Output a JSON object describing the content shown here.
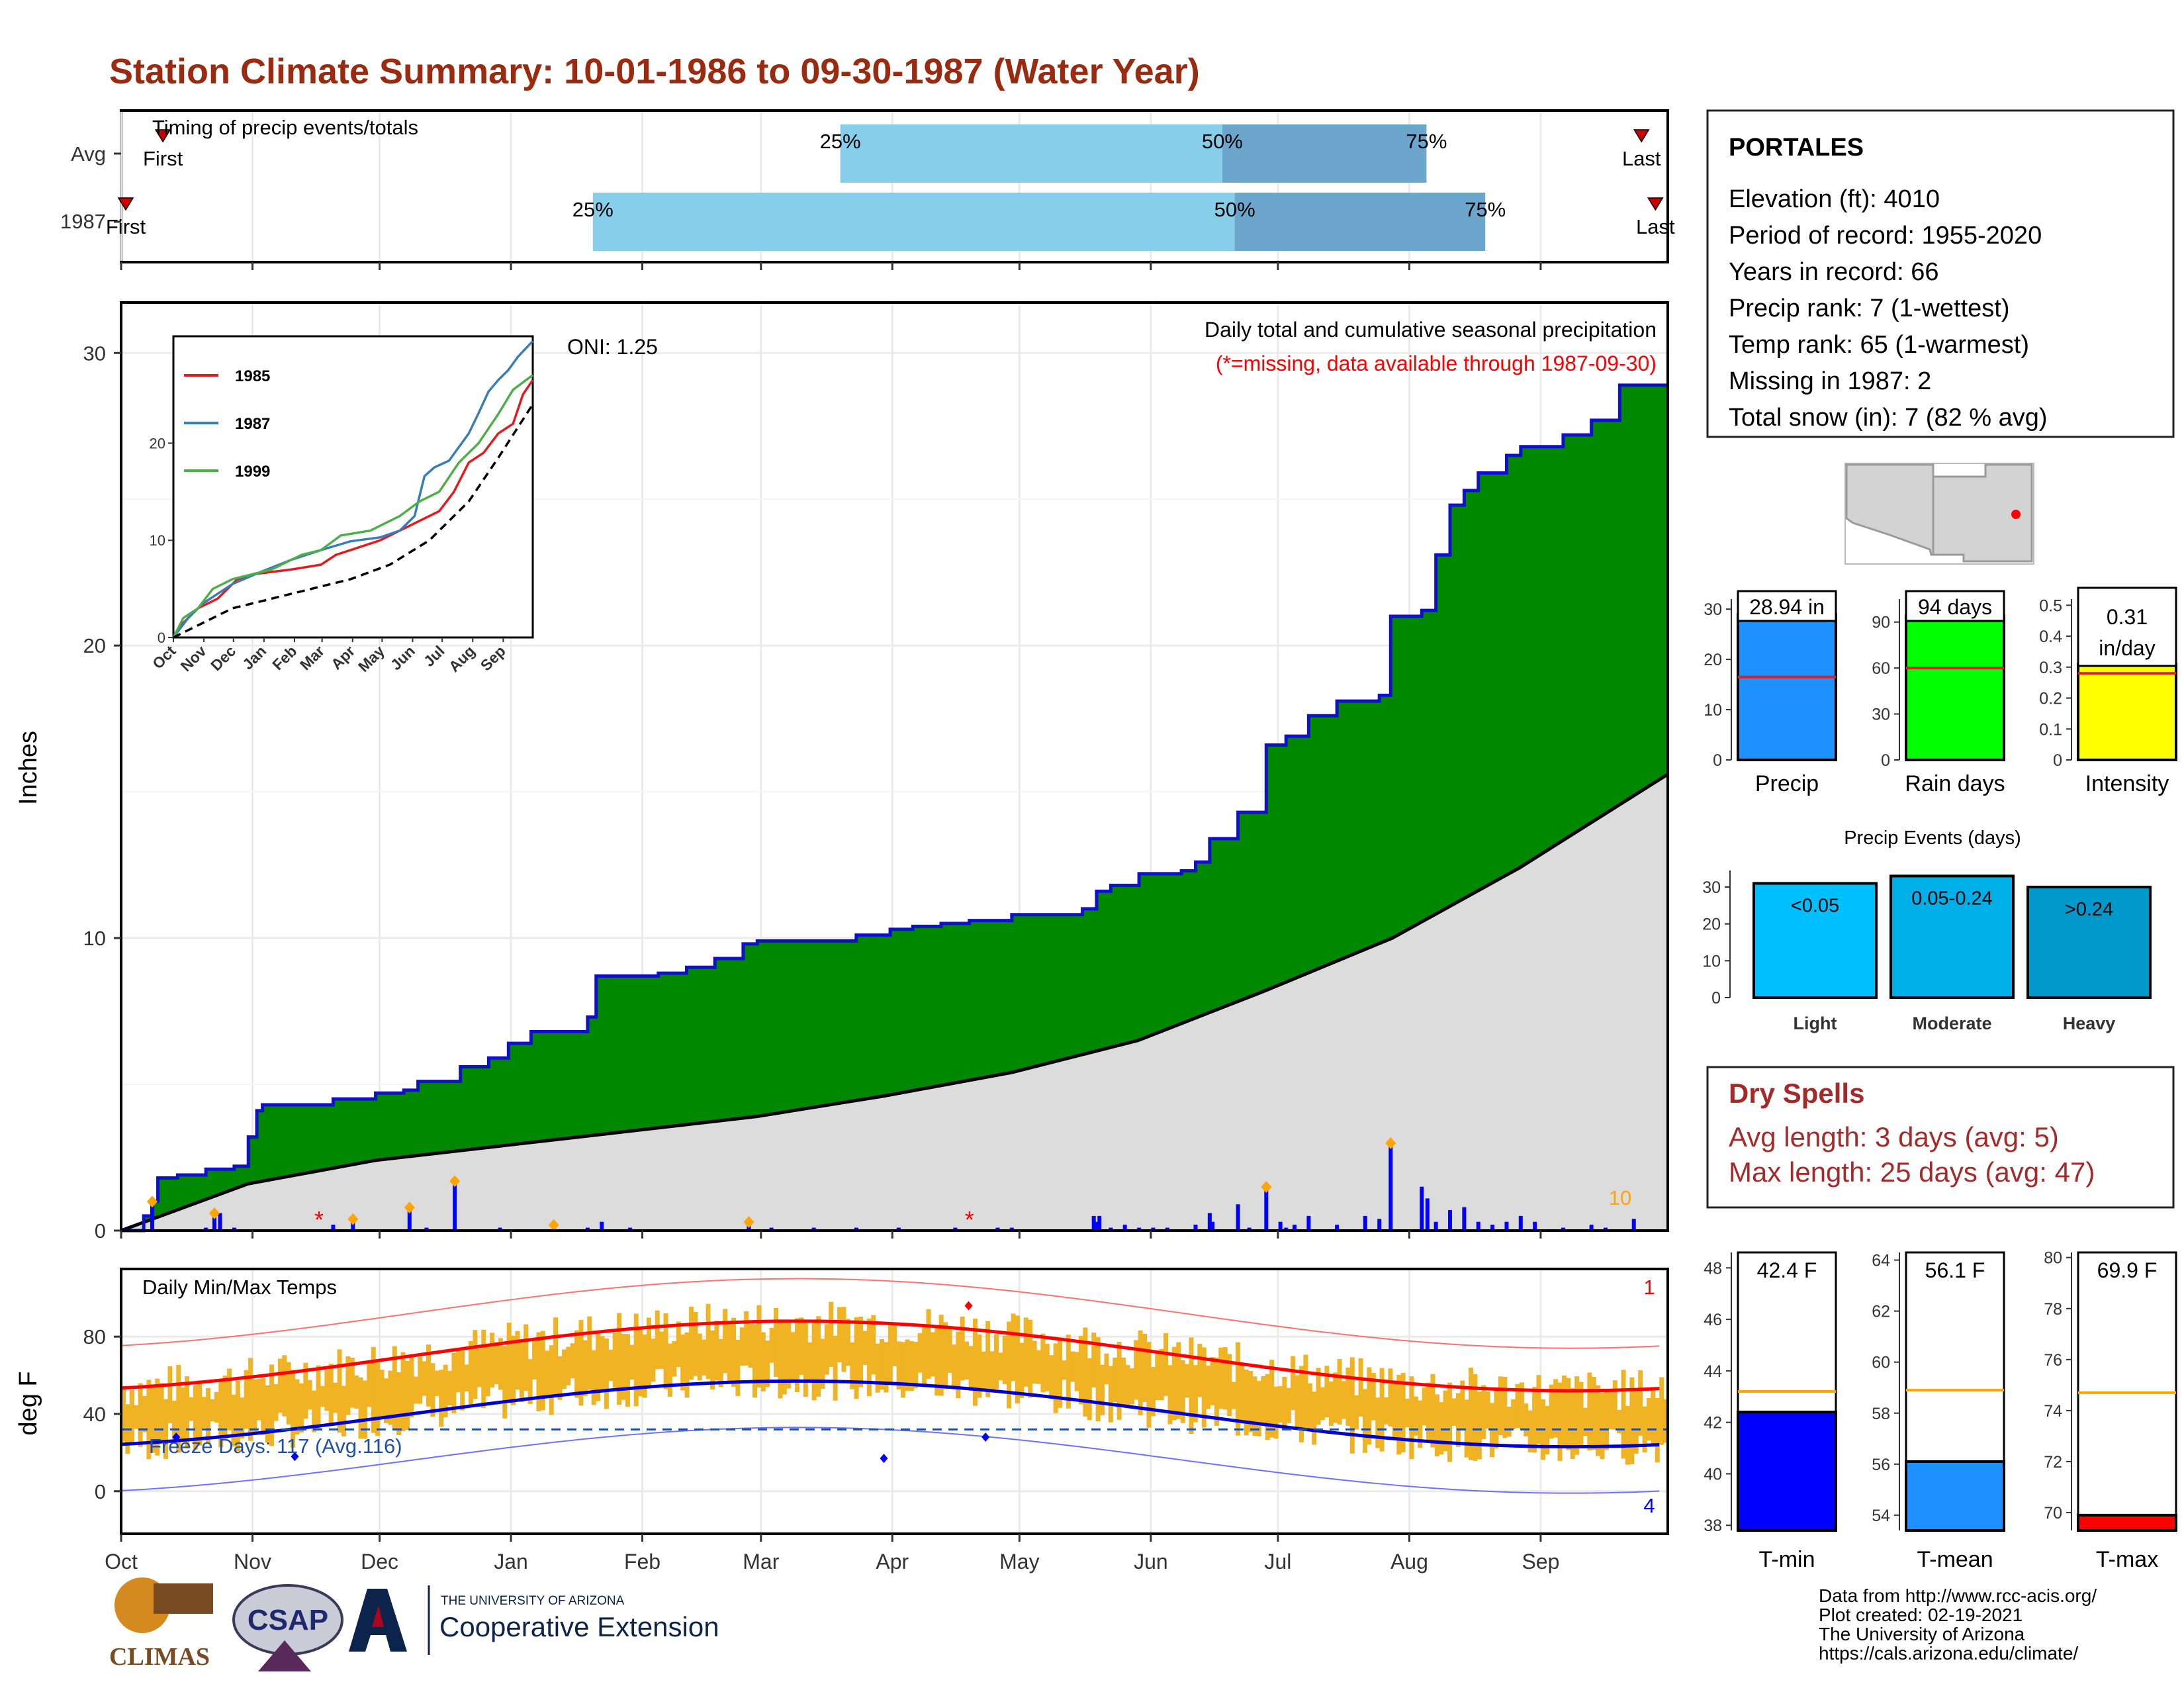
{
  "title": "Station Climate Summary: 10-01-1986 to 09-30-1987 (Water Year)",
  "months": [
    "Oct",
    "Nov",
    "Dec",
    "Jan",
    "Feb",
    "Mar",
    "Apr",
    "May",
    "Jun",
    "Jul",
    "Aug",
    "Sep"
  ],
  "station": {
    "name": "PORTALES",
    "lines": [
      "Elevation (ft): 4010",
      "Period of record: 1955-2020",
      "Years in record: 66",
      "Precip rank: 7 (1-wettest)",
      "Temp rank: 65 (1-warmest)",
      "Missing in 1987: 2",
      "Total snow (in): 7 (82 % avg)"
    ]
  },
  "timing": {
    "label": "Timing of precip events/totals",
    "rows": [
      "Avg",
      "1987"
    ],
    "first_label": "First",
    "last_label": "Last",
    "pct_labels": [
      "25%",
      "50%",
      "75%"
    ],
    "avg": {
      "first": 0.027,
      "p25": 0.465,
      "p50": 0.712,
      "p75": 0.844,
      "last": 0.983
    },
    "y1987": {
      "first": 0.003,
      "p25": 0.305,
      "p50": 0.72,
      "p75": 0.882,
      "last": 0.992
    }
  },
  "precip_panel": {
    "ylabel": "Inches",
    "yticks": [
      0,
      10,
      20,
      30
    ],
    "ylim": [
      0,
      31.5
    ],
    "title": "Daily total and cumulative seasonal precipitation",
    "subtitle": "(*=missing, data available through 1987-09-30)",
    "oni": "ONI: 1.25",
    "max_daily_label": "10",
    "cumulative_1987": [
      [
        0,
        0
      ],
      [
        8,
        0.5
      ],
      [
        11,
        1.0
      ],
      [
        13,
        1.8
      ],
      [
        20,
        1.9
      ],
      [
        30,
        2.1
      ],
      [
        40,
        2.2
      ],
      [
        45,
        3.2
      ],
      [
        48,
        4.1
      ],
      [
        50,
        4.3
      ],
      [
        70,
        4.3
      ],
      [
        75,
        4.5
      ],
      [
        90,
        4.7
      ],
      [
        100,
        4.8
      ],
      [
        105,
        5.1
      ],
      [
        120,
        5.6
      ],
      [
        130,
        5.9
      ],
      [
        137,
        6.4
      ],
      [
        145,
        6.8
      ],
      [
        160,
        6.8
      ],
      [
        165,
        7.3
      ],
      [
        168,
        8.7
      ],
      [
        185,
        8.7
      ],
      [
        190,
        8.8
      ],
      [
        200,
        9.0
      ],
      [
        210,
        9.3
      ],
      [
        220,
        9.8
      ],
      [
        225,
        9.9
      ],
      [
        250,
        9.9
      ],
      [
        260,
        10.1
      ],
      [
        272,
        10.3
      ],
      [
        280,
        10.4
      ],
      [
        290,
        10.5
      ],
      [
        300,
        10.6
      ],
      [
        315,
        10.8
      ],
      [
        340,
        11.0
      ],
      [
        345,
        11.6
      ],
      [
        350,
        11.8
      ],
      [
        360,
        12.2
      ],
      [
        375,
        12.3
      ],
      [
        380,
        12.6
      ],
      [
        385,
        13.4
      ],
      [
        395,
        14.3
      ],
      [
        405,
        16.6
      ],
      [
        412,
        16.9
      ],
      [
        420,
        17.6
      ],
      [
        430,
        18.1
      ],
      [
        440,
        18.1
      ],
      [
        445,
        18.3
      ],
      [
        449,
        21.0
      ],
      [
        460,
        21.2
      ],
      [
        465,
        23.1
      ],
      [
        470,
        24.8
      ],
      [
        475,
        25.3
      ],
      [
        480,
        25.9
      ],
      [
        490,
        26.5
      ],
      [
        495,
        26.8
      ],
      [
        510,
        27.2
      ],
      [
        520,
        27.7
      ],
      [
        530,
        28.9
      ],
      [
        547,
        28.9
      ]
    ],
    "average_cumulative": [
      [
        0,
        0
      ],
      [
        30,
        1.6
      ],
      [
        60,
        2.4
      ],
      [
        90,
        2.9
      ],
      [
        120,
        3.4
      ],
      [
        150,
        3.9
      ],
      [
        180,
        4.6
      ],
      [
        210,
        5.4
      ],
      [
        240,
        6.5
      ],
      [
        270,
        8.2
      ],
      [
        300,
        10.0
      ],
      [
        330,
        12.4
      ],
      [
        365,
        15.6
      ]
    ],
    "daily_bars": [
      [
        11,
        0.9
      ],
      [
        30,
        0.1
      ],
      [
        33,
        0.5
      ],
      [
        35,
        0.6
      ],
      [
        40,
        0.1
      ],
      [
        75,
        0.2
      ],
      [
        82,
        0.3
      ],
      [
        102,
        0.7
      ],
      [
        108,
        0.1
      ],
      [
        118,
        1.6
      ],
      [
        134,
        0.1
      ],
      [
        153,
        0.1
      ],
      [
        165,
        0.1
      ],
      [
        170,
        0.3
      ],
      [
        180,
        0.1
      ],
      [
        222,
        0.2
      ],
      [
        230,
        0.1
      ],
      [
        245,
        0.1
      ],
      [
        260,
        0.1
      ],
      [
        275,
        0.1
      ],
      [
        295,
        0.1
      ],
      [
        310,
        0.1
      ],
      [
        315,
        0.1
      ],
      [
        344,
        0.5
      ],
      [
        345,
        0.3
      ],
      [
        346,
        0.5
      ],
      [
        350,
        0.1
      ],
      [
        355,
        0.2
      ],
      [
        360,
        0.1
      ],
      [
        365,
        0.1
      ],
      [
        370,
        0.1
      ],
      [
        380,
        0.2
      ],
      [
        385,
        0.6
      ],
      [
        386,
        0.3
      ],
      [
        395,
        0.9
      ],
      [
        399,
        0.1
      ],
      [
        405,
        1.4
      ],
      [
        410,
        0.3
      ],
      [
        412,
        0.1
      ],
      [
        415,
        0.2
      ],
      [
        420,
        0.5
      ],
      [
        430,
        0.2
      ],
      [
        440,
        0.5
      ],
      [
        445,
        0.4
      ],
      [
        449,
        2.9
      ],
      [
        460,
        1.5
      ],
      [
        462,
        1.1
      ],
      [
        465,
        0.3
      ],
      [
        470,
        0.7
      ],
      [
        475,
        0.8
      ],
      [
        480,
        0.3
      ],
      [
        485,
        0.2
      ],
      [
        490,
        0.3
      ],
      [
        495,
        0.5
      ],
      [
        500,
        0.3
      ],
      [
        510,
        0.1
      ],
      [
        520,
        0.2
      ],
      [
        525,
        0.1
      ],
      [
        535,
        0.4
      ]
    ],
    "missing_days": [
      70,
      300
    ],
    "record_days": [
      11,
      33,
      82,
      102,
      118,
      153,
      222,
      405,
      449
    ]
  },
  "inset": {
    "yticks": [
      0,
      10,
      20
    ],
    "ylim": [
      0,
      31
    ],
    "months": [
      "Oct",
      "Nov",
      "Dec",
      "Jan",
      "Feb",
      "Mar",
      "Apr",
      "May",
      "Jun",
      "Jul",
      "Aug",
      "Sep"
    ],
    "series": [
      {
        "name": "1985",
        "color": "#e41a1c",
        "values": [
          [
            0,
            0
          ],
          [
            10,
            1.5
          ],
          [
            25,
            3.0
          ],
          [
            45,
            4.0
          ],
          [
            55,
            5.0
          ],
          [
            65,
            6.0
          ],
          [
            80,
            6.5
          ],
          [
            120,
            7.0
          ],
          [
            150,
            7.5
          ],
          [
            165,
            8.5
          ],
          [
            180,
            9.0
          ],
          [
            210,
            10.0
          ],
          [
            240,
            11.5
          ],
          [
            270,
            13.0
          ],
          [
            285,
            15.0
          ],
          [
            300,
            18.0
          ],
          [
            315,
            19.0
          ],
          [
            330,
            21.0
          ],
          [
            345,
            22.0
          ],
          [
            355,
            25.0
          ],
          [
            365,
            26.5
          ]
        ]
      },
      {
        "name": "1987",
        "color": "#377eb8",
        "values": [
          [
            0,
            0
          ],
          [
            15,
            2.0
          ],
          [
            30,
            3.5
          ],
          [
            45,
            4.5
          ],
          [
            60,
            5.5
          ],
          [
            90,
            6.8
          ],
          [
            120,
            8.0
          ],
          [
            150,
            9.0
          ],
          [
            180,
            9.9
          ],
          [
            210,
            10.3
          ],
          [
            230,
            11.0
          ],
          [
            245,
            12.5
          ],
          [
            255,
            16.6
          ],
          [
            265,
            17.5
          ],
          [
            280,
            18.2
          ],
          [
            300,
            21.0
          ],
          [
            310,
            23.1
          ],
          [
            320,
            25.3
          ],
          [
            330,
            26.5
          ],
          [
            340,
            27.5
          ],
          [
            350,
            28.9
          ],
          [
            365,
            30.5
          ]
        ]
      },
      {
        "name": "1999",
        "color": "#4daf4a",
        "values": [
          [
            0,
            0
          ],
          [
            10,
            2.0
          ],
          [
            25,
            3.0
          ],
          [
            40,
            5.0
          ],
          [
            60,
            6.0
          ],
          [
            80,
            6.5
          ],
          [
            100,
            7.0
          ],
          [
            130,
            8.5
          ],
          [
            150,
            9.0
          ],
          [
            170,
            10.5
          ],
          [
            200,
            11.0
          ],
          [
            230,
            12.5
          ],
          [
            250,
            14.0
          ],
          [
            270,
            15.0
          ],
          [
            290,
            18.0
          ],
          [
            310,
            20.0
          ],
          [
            330,
            23.0
          ],
          [
            345,
            25.5
          ],
          [
            365,
            27.0
          ]
        ]
      }
    ],
    "avg_values": [
      [
        0,
        0
      ],
      [
        60,
        3.0
      ],
      [
        120,
        4.5
      ],
      [
        180,
        6.0
      ],
      [
        220,
        7.5
      ],
      [
        260,
        10.0
      ],
      [
        300,
        14.0
      ],
      [
        330,
        18.5
      ],
      [
        365,
        24.0
      ]
    ]
  },
  "temp_panel": {
    "ylabel": "deg F",
    "title": "Daily Min/Max Temps",
    "yticks": [
      0,
      40,
      80
    ],
    "ylim": [
      -22,
      115
    ],
    "freeze_label": "Freeze Days: 117 (Avg.116)",
    "freeze_line": 32,
    "record_high_count": "1",
    "record_low_count": "4"
  },
  "bar_stats": [
    {
      "label": "Precip",
      "value_label": "28.94 in",
      "value": 28.94,
      "avg": 16.5,
      "ymax": 32,
      "yticks": [
        0,
        10,
        20,
        30
      ],
      "color": "#1e90ff"
    },
    {
      "label": "Rain days",
      "value_label": "94 days",
      "value": 94,
      "avg": 60,
      "ymax": 105,
      "yticks": [
        0,
        30,
        60,
        90
      ],
      "color": "#00ff00"
    },
    {
      "label": "Intensity",
      "value_label": "0.31 in/day",
      "value": 0.31,
      "avg": 0.28,
      "ymax": 0.52,
      "yticks": [
        0.0,
        0.1,
        0.2,
        0.3,
        0.4,
        0.5
      ],
      "color": "#ffff00"
    }
  ],
  "precip_events": {
    "title": "Precip Events (days)",
    "categories": [
      "Light",
      "Moderate",
      "Heavy"
    ],
    "bin_labels": [
      "<0.05",
      "0.05-0.24",
      ">0.24"
    ],
    "values": [
      31,
      33,
      30
    ],
    "colors": [
      "#00bfff",
      "#00aee8",
      "#0099cc"
    ],
    "yticks": [
      0,
      10,
      20,
      30
    ]
  },
  "dry_spells": {
    "title": "Dry Spells",
    "avg": "Avg length: 3 days (avg: 5)",
    "max": "Max length: 25 days (avg: 47)"
  },
  "temp_stats": [
    {
      "label": "T-min",
      "value_label": "42.4 F",
      "value": 42.4,
      "avg": 43.2,
      "ymin": 37.8,
      "ymax": 48.6,
      "yticks": [
        38,
        40,
        42,
        44,
        46,
        48
      ],
      "color": "#0000ff"
    },
    {
      "label": "T-mean",
      "value_label": "56.1 F",
      "value": 56.1,
      "avg": 58.9,
      "ymin": 53.4,
      "ymax": 64.3,
      "yticks": [
        54,
        56,
        58,
        60,
        62,
        64
      ],
      "color": "#1e90ff"
    },
    {
      "label": "T-max",
      "value_label": "69.9 F",
      "value": 69.9,
      "avg": 74.7,
      "ymin": 69.3,
      "ymax": 80.2,
      "yticks": [
        70,
        72,
        74,
        76,
        78,
        80
      ],
      "color": "#ff0000"
    }
  ],
  "credits": [
    "Data from http://www.rcc-acis.org/",
    "Plot created: 02-19-2021",
    "The University of Arizona",
    "https://cals.arizona.edu/climate/"
  ],
  "logos": {
    "climas": "CLIMAS",
    "csap": "CSAP",
    "ua_small": "THE UNIVERSITY OF ARIZONA",
    "ua_ext": "Cooperative Extension"
  }
}
